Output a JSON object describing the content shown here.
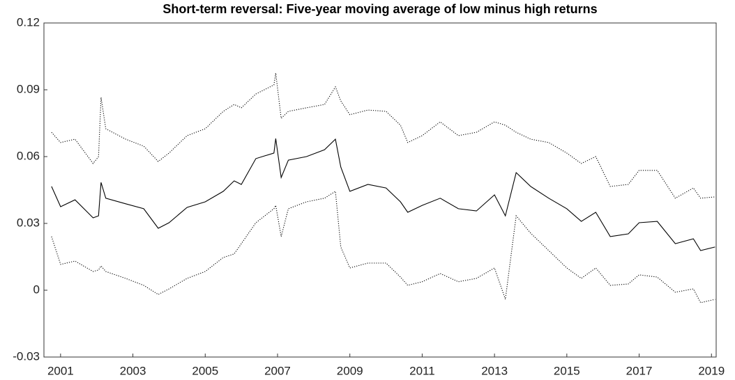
{
  "chart_data": {
    "type": "line",
    "title": "Short-term reversal: Five-year moving average of low minus high returns",
    "x": [
      2000.75,
      2001.0,
      2001.4,
      2001.9,
      2002.05,
      2002.12,
      2002.25,
      2002.8,
      2003.3,
      2003.7,
      2004.0,
      2004.5,
      2005.0,
      2005.5,
      2005.8,
      2006.0,
      2006.4,
      2006.9,
      2006.95,
      2007.1,
      2007.3,
      2007.8,
      2008.3,
      2008.6,
      2008.75,
      2009.0,
      2009.5,
      2010.0,
      2010.4,
      2010.6,
      2011.0,
      2011.5,
      2012.0,
      2012.5,
      2013.0,
      2013.3,
      2013.6,
      2014.0,
      2014.5,
      2015.0,
      2015.4,
      2015.8,
      2016.2,
      2016.7,
      2017.0,
      2017.5,
      2018.0,
      2018.5,
      2018.7,
      2019.1
    ],
    "series": [
      {
        "color": "#000000",
        "dash": "solid",
        "values": [
          0.0466,
          0.0375,
          0.0406,
          0.0325,
          0.0334,
          0.0484,
          0.0413,
          0.0388,
          0.0366,
          0.0278,
          0.0303,
          0.0372,
          0.0397,
          0.0444,
          0.0491,
          0.0475,
          0.0591,
          0.0616,
          0.0681,
          0.0506,
          0.0584,
          0.06,
          0.0631,
          0.0678,
          0.0553,
          0.0444,
          0.0475,
          0.0459,
          0.0397,
          0.035,
          0.0381,
          0.0413,
          0.0366,
          0.0356,
          0.0428,
          0.0334,
          0.0528,
          0.0466,
          0.0413,
          0.0366,
          0.0309,
          0.035,
          0.0241,
          0.0253,
          0.0303,
          0.0309,
          0.0209,
          0.0231,
          0.0178,
          0.0194
        ]
      },
      {
        "color": "#000000",
        "dash": "dotted",
        "values": [
          0.0709,
          0.0663,
          0.0678,
          0.0569,
          0.06,
          0.0866,
          0.0725,
          0.0678,
          0.0647,
          0.0578,
          0.0616,
          0.0694,
          0.0725,
          0.0803,
          0.0834,
          0.0819,
          0.0881,
          0.0922,
          0.0975,
          0.0772,
          0.0803,
          0.0819,
          0.0834,
          0.0913,
          0.085,
          0.0788,
          0.0809,
          0.0803,
          0.0741,
          0.0663,
          0.0694,
          0.0756,
          0.0694,
          0.0709,
          0.0756,
          0.0741,
          0.0709,
          0.0678,
          0.0663,
          0.0616,
          0.0569,
          0.06,
          0.0466,
          0.0475,
          0.0538,
          0.0538,
          0.0413,
          0.0459,
          0.0413,
          0.0419
        ]
      },
      {
        "color": "#000000",
        "dash": "dotted",
        "values": [
          0.0241,
          0.0116,
          0.0131,
          0.0084,
          0.0091,
          0.0109,
          0.0084,
          0.0053,
          0.0022,
          -0.0019,
          0.0006,
          0.0053,
          0.0084,
          0.0147,
          0.0163,
          0.0209,
          0.0303,
          0.0366,
          0.0381,
          0.0241,
          0.0366,
          0.0397,
          0.0413,
          0.0444,
          0.0194,
          0.01,
          0.0122,
          0.0122,
          0.0059,
          0.0022,
          0.0038,
          0.0075,
          0.0038,
          0.0053,
          0.01,
          -0.0041,
          0.0334,
          0.0256,
          0.0178,
          0.01,
          0.0053,
          0.01,
          0.0022,
          0.0028,
          0.0069,
          0.0059,
          -0.0009,
          0.0006,
          -0.0056,
          -0.0041
        ]
      }
    ],
    "xlim": [
      2000.54,
      2019.13
    ],
    "xticks": [
      2001,
      2003,
      2005,
      2007,
      2009,
      2011,
      2013,
      2015,
      2017,
      2019
    ],
    "ylim": [
      -0.03,
      0.12
    ],
    "yticks": [
      -0.03,
      0,
      0.03,
      0.06,
      0.09,
      0.12
    ],
    "grid": false
  }
}
